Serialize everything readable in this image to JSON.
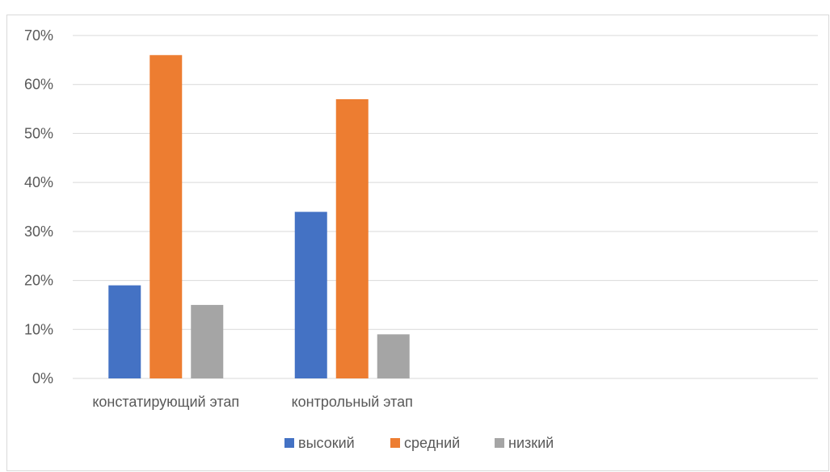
{
  "chart_data": {
    "type": "bar",
    "categories": [
      "констатирующий этап",
      "контрольный этап",
      "",
      ""
    ],
    "series": [
      {
        "name": "высокий",
        "values": [
          19,
          34,
          null,
          null
        ],
        "color": "#4472C4"
      },
      {
        "name": "средний",
        "values": [
          66,
          57,
          null,
          null
        ],
        "color": "#ED7D31"
      },
      {
        "name": "низкий",
        "values": [
          15,
          9,
          null,
          null
        ],
        "color": "#A5A5A5"
      }
    ],
    "ylim": [
      0,
      70
    ],
    "yticks": [
      "0%",
      "10%",
      "20%",
      "30%",
      "40%",
      "50%",
      "60%",
      "70%"
    ],
    "grid": true,
    "legend_position": "bottom"
  }
}
